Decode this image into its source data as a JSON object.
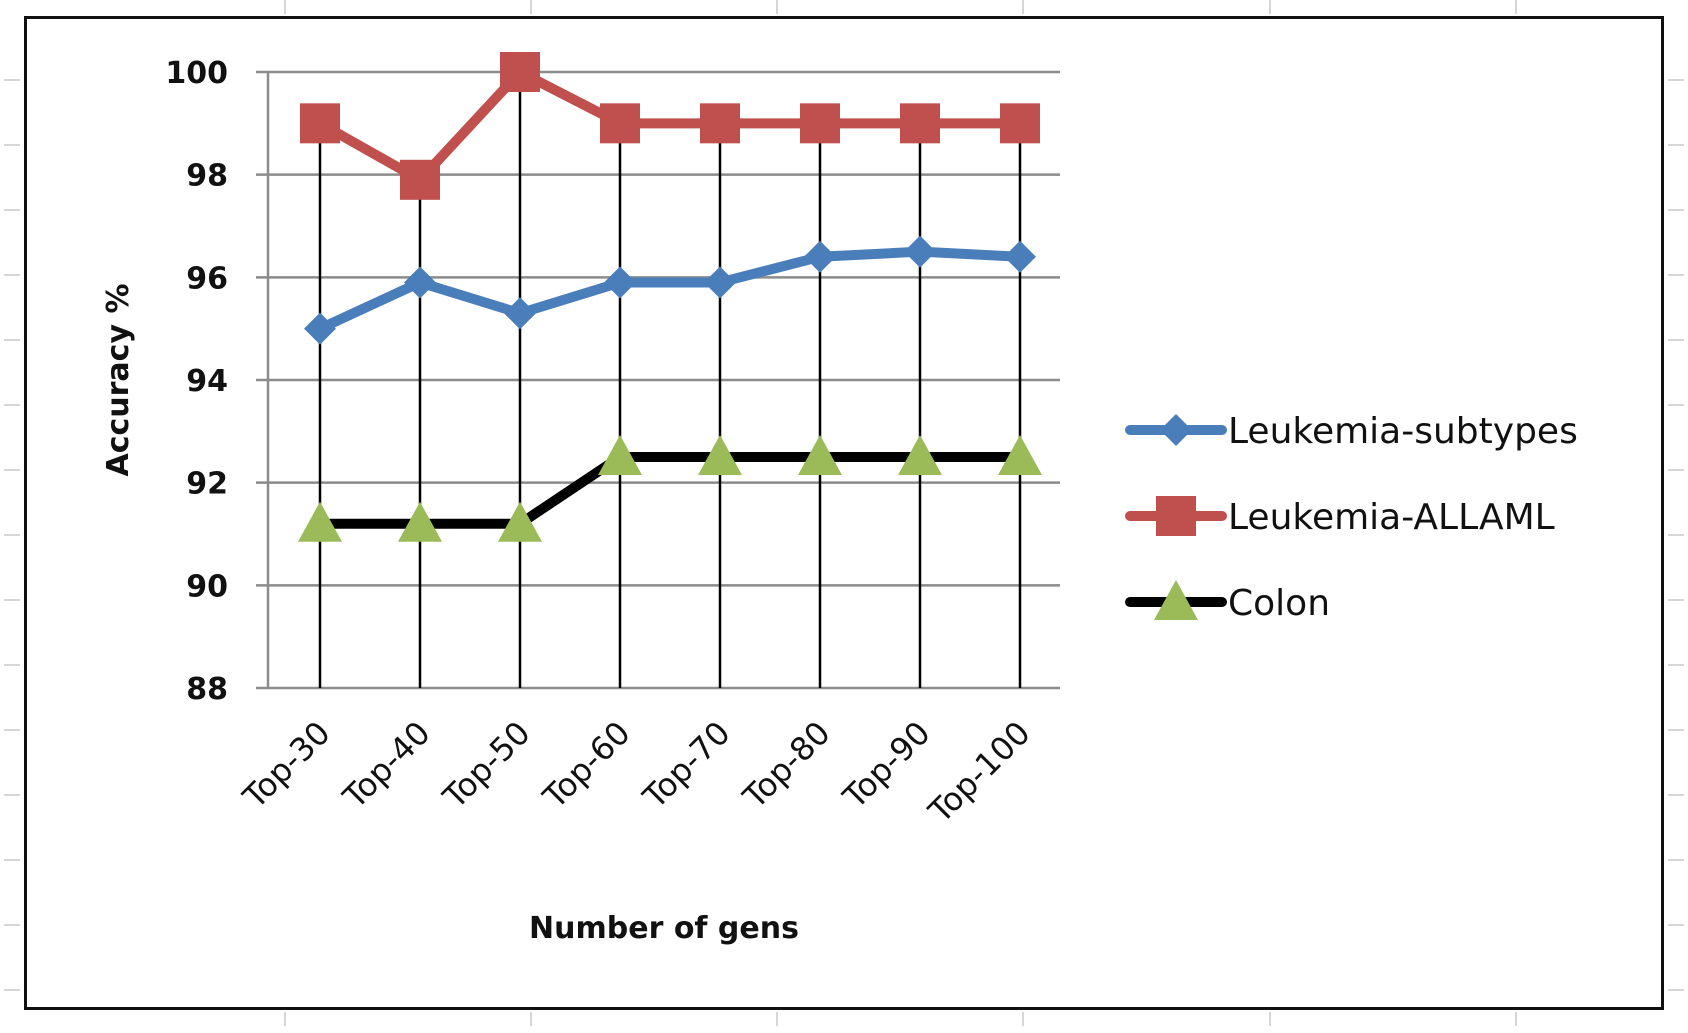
{
  "chart_data": {
    "type": "line",
    "title": "",
    "xlabel": "Number of gens",
    "ylabel": "Accuracy %",
    "categories": [
      "Top-30",
      "Top-40",
      "Top-50",
      "Top-60",
      "Top-70",
      "Top-80",
      "Top-90",
      "Top-100"
    ],
    "ylim": [
      88,
      100
    ],
    "yticks": [
      88,
      90,
      92,
      94,
      96,
      98,
      100
    ],
    "grid": true,
    "drop_lines": true,
    "legend_position": "right",
    "series": [
      {
        "name": "Leukemia-subtypes",
        "color": "#4a7ebb",
        "marker": "diamond",
        "values": [
          95.0,
          95.9,
          95.3,
          95.9,
          95.9,
          96.4,
          96.5,
          96.4
        ]
      },
      {
        "name": "Leukemia-ALLAML",
        "color": "#c0504d",
        "marker": "square",
        "values": [
          99.0,
          97.9,
          100.0,
          99.0,
          99.0,
          99.0,
          99.0,
          99.0
        ]
      },
      {
        "name": "Colon",
        "color": "#000000",
        "marker": "triangle",
        "marker_color": "#9bbb59",
        "values": [
          91.2,
          91.2,
          91.2,
          92.5,
          92.5,
          92.5,
          92.5,
          92.5
        ]
      }
    ]
  }
}
